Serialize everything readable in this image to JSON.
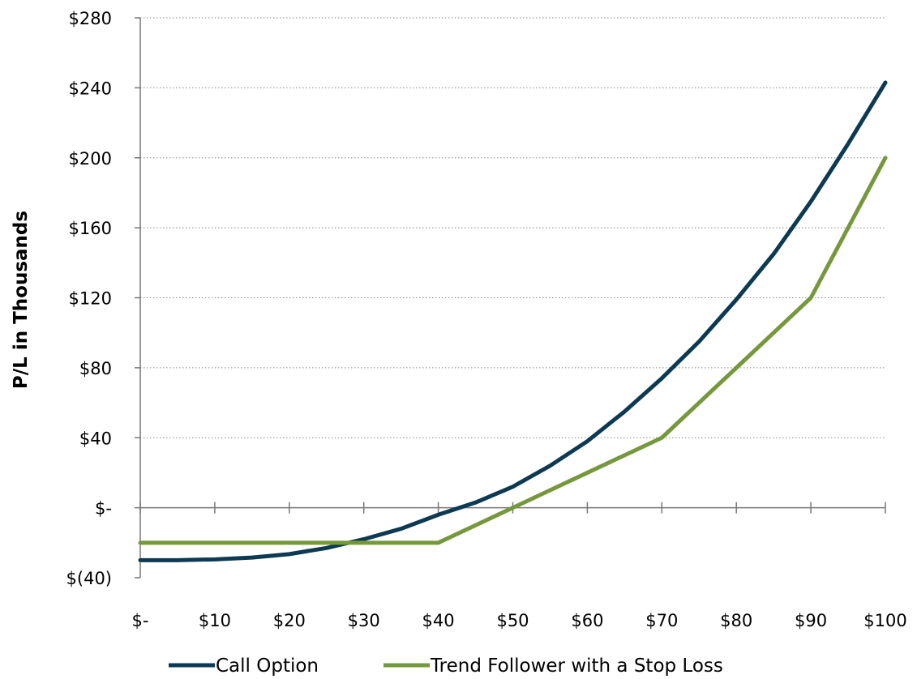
{
  "chart_data": {
    "type": "line",
    "title": "",
    "xlabel": "",
    "ylabel": "P/L in Thousands",
    "x": [
      0,
      5,
      10,
      15,
      20,
      25,
      30,
      35,
      40,
      45,
      50,
      55,
      60,
      65,
      70,
      75,
      80,
      85,
      90,
      95,
      100
    ],
    "x_tick_values": [
      0,
      10,
      20,
      30,
      40,
      50,
      60,
      70,
      80,
      90,
      100
    ],
    "x_tick_labels": [
      "$-",
      "$10",
      "$20",
      "$30",
      "$40",
      "$50",
      "$60",
      "$70",
      "$80",
      "$90",
      "$100"
    ],
    "xlim": [
      0,
      100
    ],
    "y_tick_values": [
      -40,
      0,
      40,
      80,
      120,
      160,
      200,
      240,
      280
    ],
    "y_tick_labels": [
      "$(40)",
      "$-",
      "$40",
      "$80",
      "$120",
      "$160",
      "$200",
      "$240",
      "$280"
    ],
    "ylim": [
      -40,
      280
    ],
    "grid": "horizontal-dotted",
    "legend_position": "bottom",
    "series": [
      {
        "name": "Call Option",
        "color": "#0d3a52",
        "values": [
          -30,
          -30,
          -29.5,
          -28.5,
          -26.5,
          -23,
          -18,
          -12,
          -4,
          3,
          12,
          24,
          38,
          55,
          74,
          95,
          119,
          145,
          175,
          208,
          243
        ]
      },
      {
        "name": "Trend Follower with a Stop Loss",
        "color": "#76983d",
        "values": [
          -20,
          -20,
          -20,
          -20,
          -20,
          -20,
          -20,
          -20,
          -20,
          -10,
          0,
          10,
          20,
          30,
          40,
          60,
          80,
          100,
          120,
          160,
          200
        ]
      }
    ]
  }
}
